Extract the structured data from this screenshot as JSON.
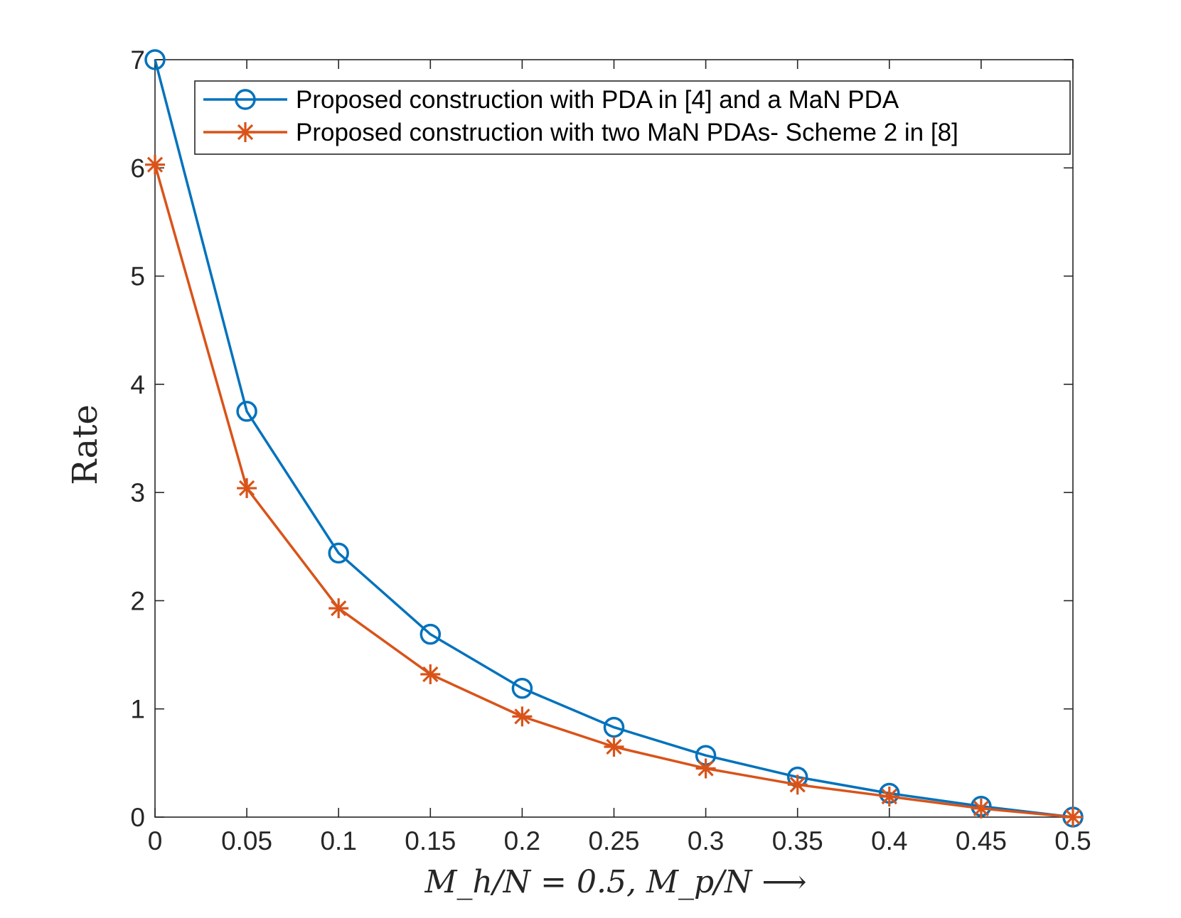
{
  "chart_data": {
    "type": "line",
    "title": "",
    "xlabel": "M_h/N = 0.5, M_p/N ⟶",
    "ylabel": "Rate",
    "xlim": [
      0,
      0.5
    ],
    "ylim": [
      0,
      7
    ],
    "xticks": [
      0,
      0.05,
      0.1,
      0.15,
      0.2,
      0.25,
      0.3,
      0.35,
      0.4,
      0.45,
      0.5
    ],
    "xtick_labels": [
      "0",
      "0.05",
      "0.1",
      "0.15",
      "0.2",
      "0.25",
      "0.3",
      "0.35",
      "0.4",
      "0.45",
      "0.5"
    ],
    "yticks": [
      0,
      1,
      2,
      3,
      4,
      5,
      6,
      7
    ],
    "ytick_labels": [
      "0",
      "1",
      "2",
      "3",
      "4",
      "5",
      "6",
      "7"
    ],
    "grid": false,
    "legend_position": "top-right",
    "x": [
      0,
      0.05,
      0.1,
      0.15,
      0.2,
      0.25,
      0.3,
      0.35,
      0.4,
      0.45,
      0.5
    ],
    "series": [
      {
        "name": "Proposed construction with PDA in [4] and a MaN PDA",
        "color": "#0072BD",
        "marker": "circle",
        "values": [
          7.0,
          3.75,
          2.44,
          1.69,
          1.19,
          0.83,
          0.57,
          0.37,
          0.22,
          0.1,
          0.0
        ]
      },
      {
        "name": "Proposed construction with two MaN PDAs- Scheme 2 in [8]",
        "color": "#D95319",
        "marker": "asterisk",
        "values": [
          6.03,
          3.04,
          1.93,
          1.32,
          0.93,
          0.65,
          0.45,
          0.3,
          0.19,
          0.08,
          0.0
        ]
      }
    ]
  }
}
